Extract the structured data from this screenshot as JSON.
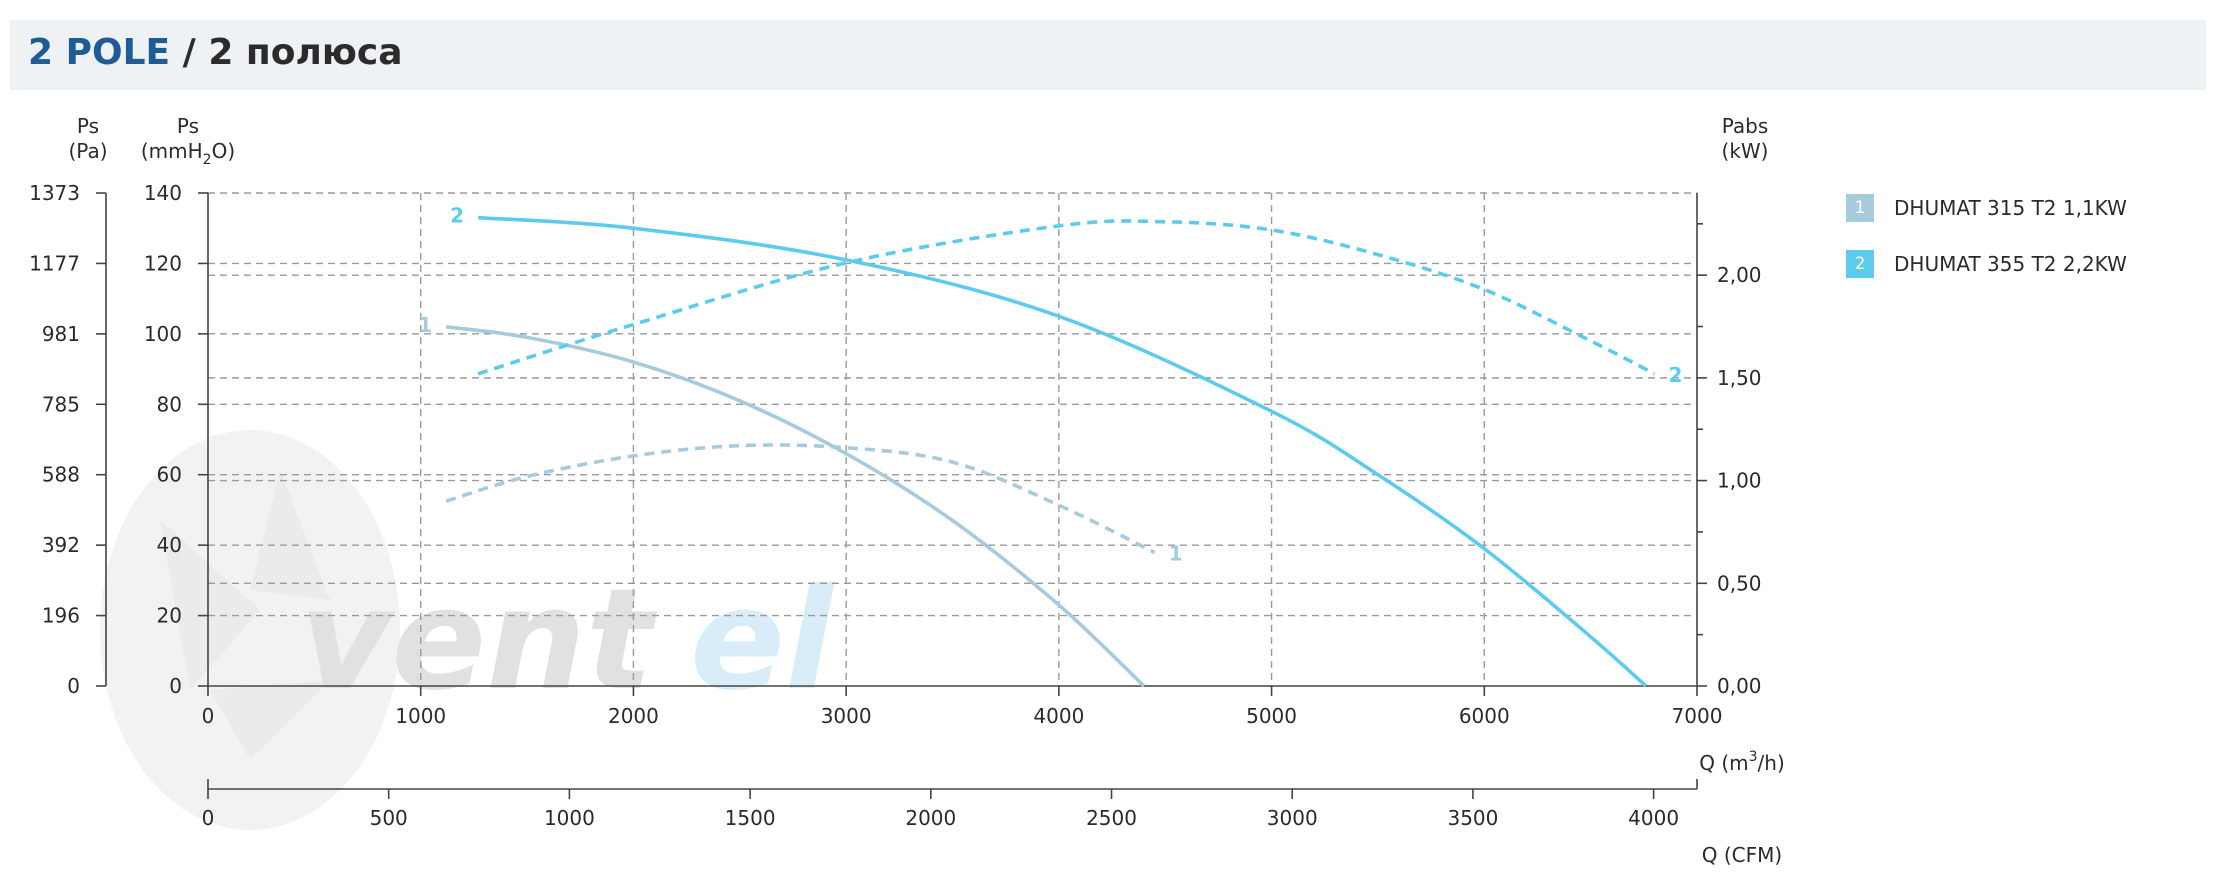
{
  "header": {
    "title_main": "2 POLE",
    "title_sep": " / 2 полюса"
  },
  "colors": {
    "series1": "#a8cadd",
    "series2": "#5dcbee",
    "grid": "#9a9a9a",
    "header_bg": "#eef2f5",
    "title_accent": "#1f5c96"
  },
  "watermark": "ventel",
  "chart_data": {
    "type": "line",
    "axes": {
      "y_pa": {
        "label_top": "Ps",
        "label_unit": "(Pa)",
        "ticks": [
          "1373",
          "1177",
          "981",
          "785",
          "588",
          "392",
          "196",
          "0"
        ]
      },
      "y_mm": {
        "label_top": "Ps",
        "label_unit_pre": "(mmH",
        "label_unit_sub": "2",
        "label_unit_post": "O)",
        "range": [
          0,
          140
        ],
        "ticks": [
          "140",
          "120",
          "100",
          "80",
          "60",
          "40",
          "20",
          "0"
        ]
      },
      "y_power": {
        "label_top": "Pabs",
        "label_unit": "(kW)",
        "range": [
          0,
          2.4
        ],
        "ticks": [
          "2,00",
          "1,50",
          "1,00",
          "0,50",
          "0,00"
        ]
      },
      "x_m3h": {
        "label_pre": "Q (m",
        "label_sup": "3",
        "label_post": "/h)",
        "range": [
          0,
          7000
        ],
        "ticks": [
          "0",
          "1000",
          "2000",
          "3000",
          "4000",
          "5000",
          "6000",
          "7000"
        ]
      },
      "x_cfm": {
        "label": "Q (CFM)",
        "range": [
          0,
          4120
        ],
        "ticks": [
          "0",
          "500",
          "1000",
          "1500",
          "2000",
          "2500",
          "3000",
          "3500",
          "4000"
        ]
      }
    },
    "grid": true,
    "legend_position": "right",
    "series": [
      {
        "id": "1",
        "name": "DHUMAT 315 T2 1,1KW",
        "pressure": {
          "x": [
            1120,
            1500,
            2000,
            2500,
            3000,
            3500,
            4000,
            4400
          ],
          "y": [
            102,
            99,
            92,
            81,
            66,
            47,
            23,
            0
          ]
        },
        "power": {
          "x": [
            1120,
            1500,
            2000,
            2500,
            3000,
            3500,
            4000,
            4450
          ],
          "y": [
            0.9,
            1.02,
            1.12,
            1.17,
            1.16,
            1.09,
            0.88,
            0.65
          ]
        }
      },
      {
        "id": "2",
        "name": "DHUMAT 355 T2 2,2KW",
        "pressure": {
          "x": [
            1270,
            2000,
            3000,
            4000,
            5000,
            5500,
            6000,
            6500,
            6760
          ],
          "y": [
            133,
            130,
            121,
            105,
            78,
            60,
            39,
            14,
            0
          ]
        },
        "power": {
          "x": [
            1270,
            2000,
            3000,
            4000,
            4500,
            5000,
            5500,
            6000,
            6500,
            6800
          ],
          "y": [
            1.52,
            1.76,
            2.06,
            2.24,
            2.26,
            2.22,
            2.1,
            1.93,
            1.68,
            1.52
          ]
        }
      }
    ]
  }
}
